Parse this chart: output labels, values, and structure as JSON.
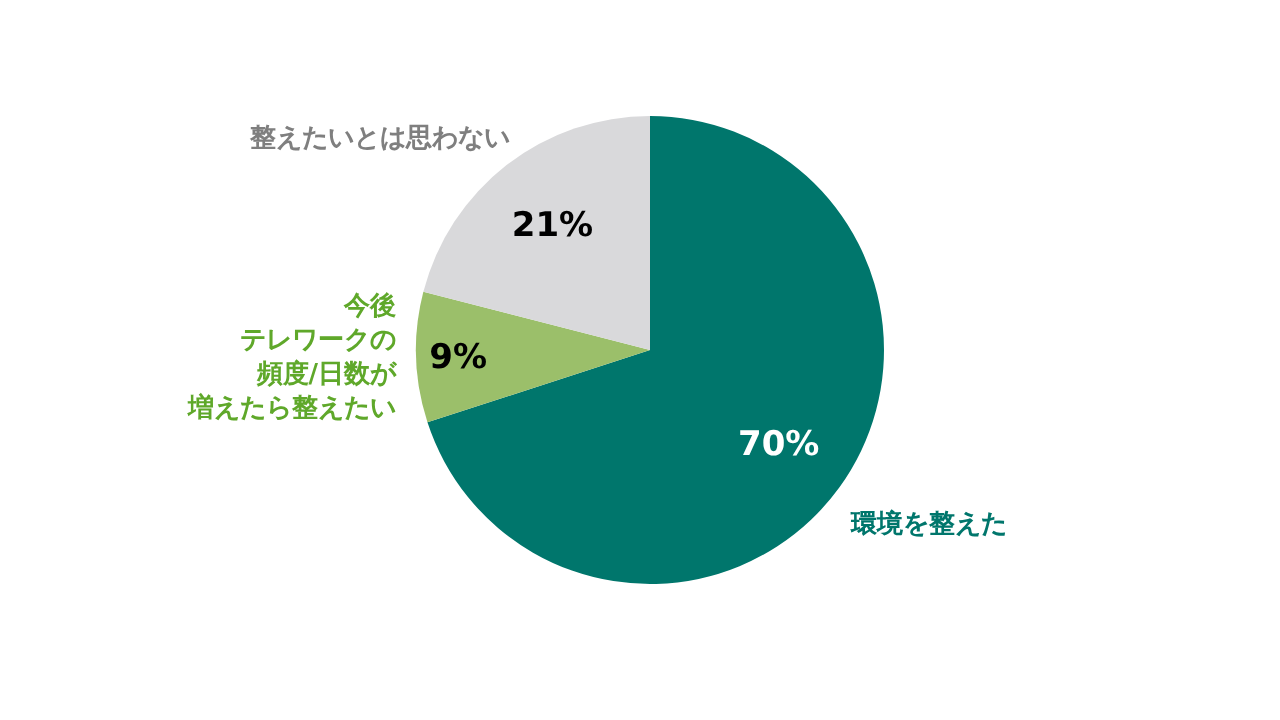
{
  "chart_data": {
    "type": "pie",
    "categories": [
      "環境を整えた",
      "今後テレワークの頻度/日数が増えたら整えたい",
      "整えたいとは思わない"
    ],
    "values": [
      70,
      9,
      21
    ],
    "colors": [
      "#00766c",
      "#9bbf6a",
      "#d9d9db"
    ],
    "value_labels": [
      "70%",
      "9%",
      "21%"
    ]
  }
}
